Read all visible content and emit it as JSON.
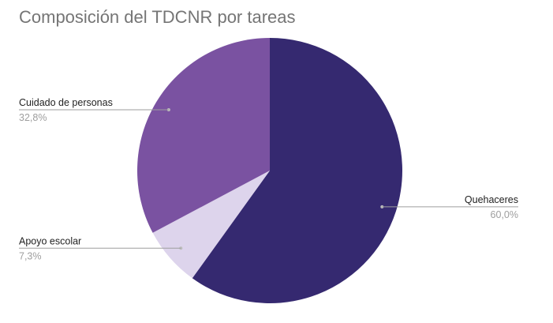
{
  "chart_data": {
    "type": "pie",
    "title": "Composición del TDCNR por tareas",
    "slices": [
      {
        "label": "Quehaceres",
        "value": 60.0,
        "display": "60,0%",
        "color": "#352970"
      },
      {
        "label": "Apoyo escolar",
        "value": 7.3,
        "display": "7,3%",
        "color": "#ddd4ec"
      },
      {
        "label": "Cuidado de personas",
        "value": 32.8,
        "display": "32,8%",
        "color": "#7a52a1"
      }
    ]
  }
}
